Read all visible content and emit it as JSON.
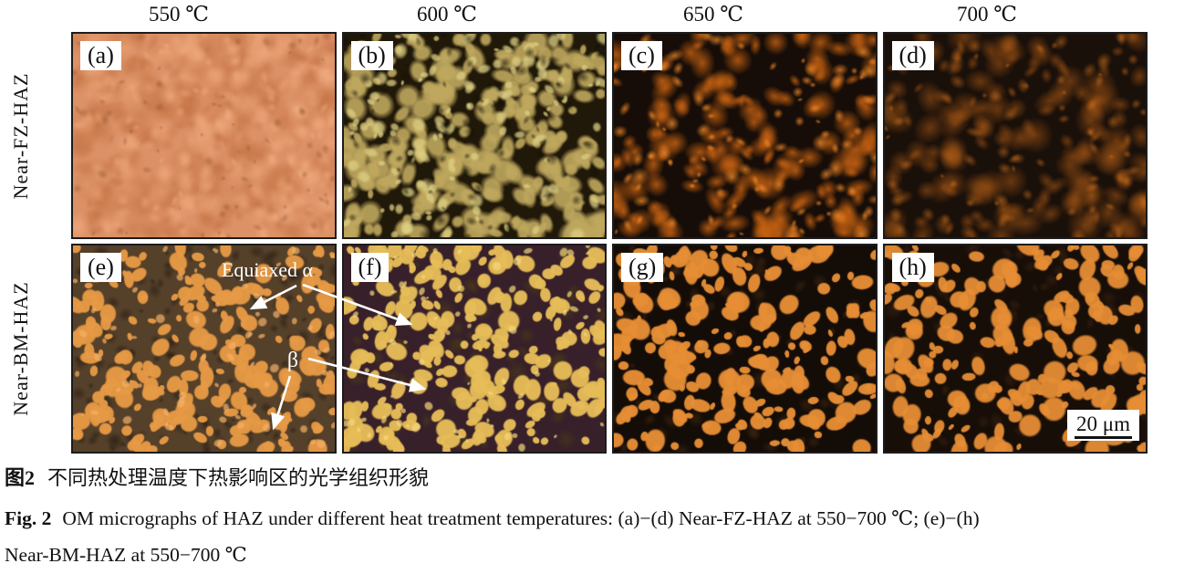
{
  "figure": {
    "column_headers": [
      "550 ℃",
      "600 ℃",
      "650 ℃",
      "700 ℃"
    ],
    "row_labels": [
      "Near-FZ-HAZ",
      "Near-BM-HAZ"
    ],
    "annotations": {
      "equiaxed_alpha": "Equiaxed α",
      "beta": "β"
    },
    "scale_bar_label": "20 μm",
    "arrow_color": "#ffffff",
    "panels": [
      {
        "label": "(a)",
        "bg": "#dd9166",
        "seed": 101,
        "layers": [
          {
            "c": "#c27243",
            "n": 300,
            "r": [
              6,
              22
            ],
            "a": 0.45,
            "f": 1
          },
          {
            "c": "#f2ad80",
            "n": 220,
            "r": [
              5,
              18
            ],
            "a": 0.5,
            "f": 1
          },
          {
            "c": "#7e4526",
            "n": 70,
            "r": [
              2,
              7
            ],
            "a": 0.35,
            "f": 1
          }
        ]
      },
      {
        "label": "(b)",
        "bg": "#201808",
        "seed": 202,
        "layers": [
          {
            "c": "#bfa85e",
            "n": 250,
            "r": [
              6,
              18
            ],
            "a": 0.9,
            "f": 0.45
          },
          {
            "c": "#ded083",
            "n": 130,
            "r": [
              3,
              10
            ],
            "a": 0.75,
            "f": 0.5
          },
          {
            "c": "#141006",
            "n": 90,
            "r": [
              3,
              9
            ],
            "a": 0.5,
            "f": 0.9
          }
        ]
      },
      {
        "label": "(c)",
        "bg": "#160d08",
        "seed": 303,
        "layers": [
          {
            "c": "#c96312",
            "n": 160,
            "r": [
              7,
              20
            ],
            "a": 0.8,
            "f": 1
          },
          {
            "c": "#f28a28",
            "n": 100,
            "r": [
              3,
              11
            ],
            "a": 0.75,
            "f": 1
          }
        ]
      },
      {
        "label": "(d)",
        "bg": "#1a100a",
        "seed": 404,
        "layers": [
          {
            "c": "#a85815",
            "n": 150,
            "r": [
              7,
              22
            ],
            "a": 0.55,
            "f": 1
          },
          {
            "c": "#e67d1e",
            "n": 80,
            "r": [
              3,
              10
            ],
            "a": 0.45,
            "f": 1
          }
        ]
      },
      {
        "label": "(e)",
        "bg": "#55402a",
        "seed": 505,
        "layers": [
          {
            "c": "#2c2014",
            "n": 200,
            "r": [
              3,
              10
            ],
            "a": 0.55,
            "f": 0.8
          },
          {
            "c": "#e79a45",
            "n": 230,
            "r": [
              4,
              13
            ],
            "a": 0.96,
            "f": 0.18
          },
          {
            "c": "#f3b066",
            "n": 70,
            "r": [
              2,
              6
            ],
            "a": 0.7,
            "f": 0.3
          }
        ]
      },
      {
        "label": "(f)",
        "bg": "#38202a",
        "seed": 606,
        "layers": [
          {
            "c": "#4a3c16",
            "n": 70,
            "r": [
              5,
              14
            ],
            "a": 0.5,
            "f": 0.8
          },
          {
            "c": "#e7bd58",
            "n": 240,
            "r": [
              4,
              13
            ],
            "a": 0.96,
            "f": 0.18
          },
          {
            "c": "#f5d87c",
            "n": 70,
            "r": [
              2,
              6
            ],
            "a": 0.7,
            "f": 0.3
          }
        ]
      },
      {
        "label": "(g)",
        "bg": "#140c07",
        "seed": 707,
        "layers": [
          {
            "c": "#3a2410",
            "n": 80,
            "r": [
              4,
              12
            ],
            "a": 0.6,
            "f": 0.8
          },
          {
            "c": "#e78e35",
            "n": 220,
            "r": [
              4,
              14
            ],
            "a": 0.96,
            "f": 0.18
          }
        ]
      },
      {
        "label": "(h)",
        "bg": "#180e08",
        "seed": 808,
        "layers": [
          {
            "c": "#3a2410",
            "n": 70,
            "r": [
              4,
              12
            ],
            "a": 0.5,
            "f": 0.8
          },
          {
            "c": "#e78e35",
            "n": 200,
            "r": [
              4,
              15
            ],
            "a": 0.94,
            "f": 0.2
          }
        ]
      }
    ]
  },
  "caption": {
    "zh": {
      "label": "图2",
      "text": "不同热处理温度下热影响区的光学组织形貌"
    },
    "en": {
      "label": "Fig. 2",
      "line1": "OM micrographs of HAZ under different heat treatment temperatures: (a)−(d) Near-FZ-HAZ at 550−700 ℃; (e)−(h)",
      "line2": "Near-BM-HAZ at 550−700 ℃"
    }
  }
}
